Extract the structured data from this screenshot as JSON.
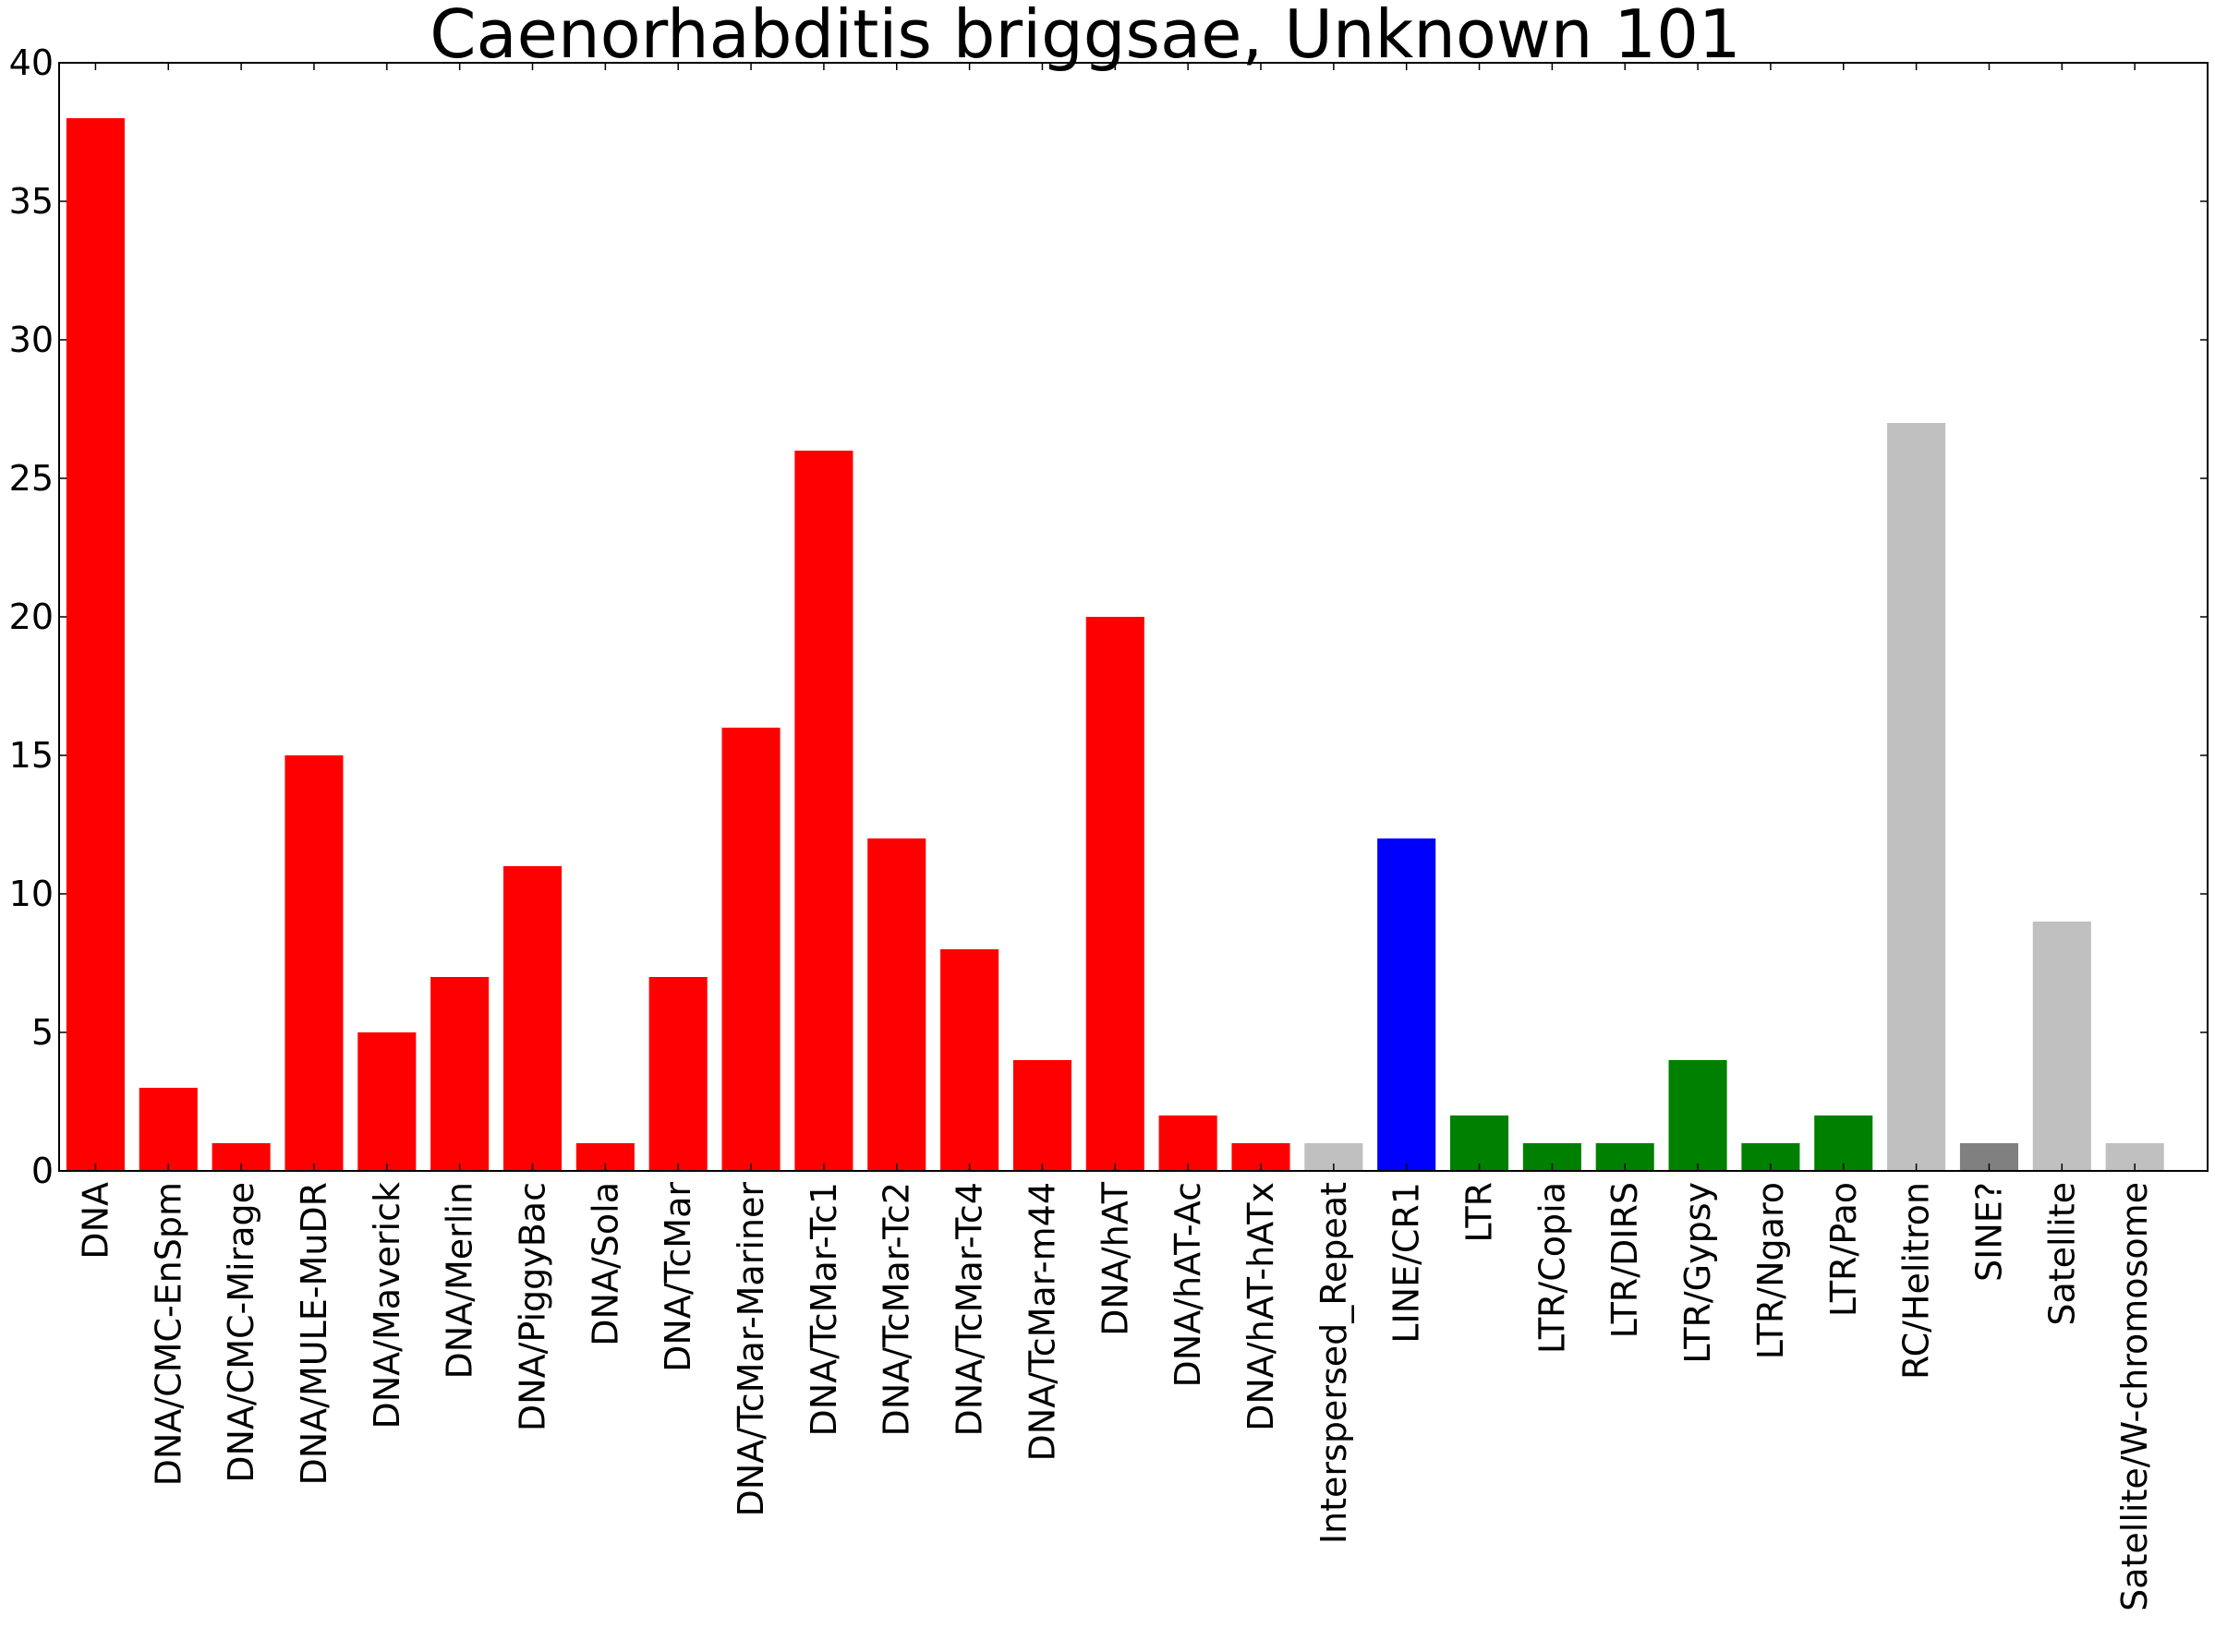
{
  "chart_data": {
    "type": "bar",
    "title": "Caenorhabditis briggsae, Unknown 101",
    "xlabel": "",
    "ylabel": "",
    "ylim": [
      0,
      40
    ],
    "yticks": [
      0,
      5,
      10,
      15,
      20,
      25,
      30,
      35,
      40
    ],
    "grid": false,
    "categories": [
      "DNA",
      "DNA/CMC-EnSpm",
      "DNA/CMC-Mirage",
      "DNA/MULE-MuDR",
      "DNA/Maverick",
      "DNA/Merlin",
      "DNA/PiggyBac",
      "DNA/Sola",
      "DNA/TcMar",
      "DNA/TcMar-Mariner",
      "DNA/TcMar-Tc1",
      "DNA/TcMar-Tc2",
      "DNA/TcMar-Tc4",
      "DNA/TcMar-m44",
      "DNA/hAT",
      "DNA/hAT-Ac",
      "DNA/hAT-hATx",
      "Interspersed_Repeat",
      "LINE/CR1",
      "LTR",
      "LTR/Copia",
      "LTR/DIRS",
      "LTR/Gypsy",
      "LTR/Ngaro",
      "LTR/Pao",
      "RC/Helitron",
      "SINE?",
      "Satellite",
      "Satellite/W-chromosome"
    ],
    "values": [
      38,
      3,
      1,
      15,
      5,
      7,
      11,
      1,
      7,
      16,
      26,
      12,
      8,
      4,
      20,
      2,
      1,
      1,
      12,
      2,
      1,
      1,
      4,
      1,
      2,
      27,
      1,
      9,
      1
    ],
    "colors": [
      "#ff0000",
      "#ff0000",
      "#ff0000",
      "#ff0000",
      "#ff0000",
      "#ff0000",
      "#ff0000",
      "#ff0000",
      "#ff0000",
      "#ff0000",
      "#ff0000",
      "#ff0000",
      "#ff0000",
      "#ff0000",
      "#ff0000",
      "#ff0000",
      "#ff0000",
      "#c0c0c0",
      "#0000ff",
      "#008000",
      "#008000",
      "#008000",
      "#008000",
      "#008000",
      "#008000",
      "#c0c0c0",
      "#808080",
      "#c0c0c0",
      "#c0c0c0"
    ]
  }
}
